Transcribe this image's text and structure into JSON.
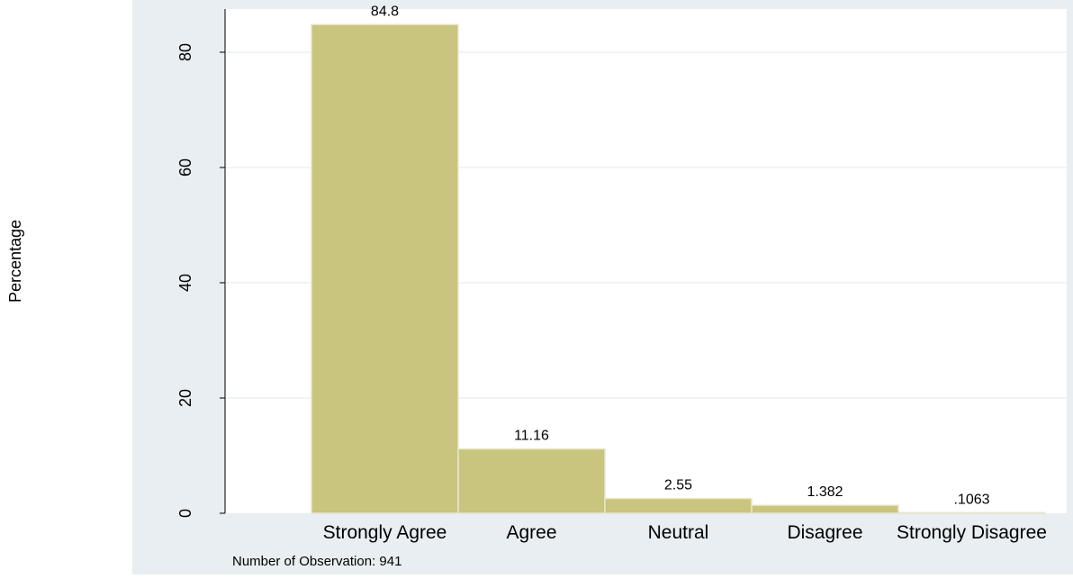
{
  "chart_data": {
    "type": "bar",
    "categories": [
      "Strongly Agree",
      "Agree",
      "Neutral",
      "Disagree",
      "Strongly Disagree"
    ],
    "values": [
      84.8,
      11.16,
      2.55,
      1.382,
      0.1063
    ],
    "value_labels": [
      "84.8",
      "11.16",
      "2.55",
      "1.382",
      ".1063"
    ],
    "title": "",
    "xlabel": "",
    "ylabel": "Percentage",
    "ylim": [
      0,
      88
    ],
    "yticks": [
      0,
      20,
      40,
      60,
      80
    ],
    "grid": true,
    "note": "Number of Observation: 941",
    "colors": {
      "bar_fill": "#c9c47e",
      "bar_stroke": "#e8e6cc",
      "outer_background": "#e8eef2",
      "plot_background": "#ffffff",
      "grid": "#e3eaee",
      "axis": "#000000"
    }
  }
}
